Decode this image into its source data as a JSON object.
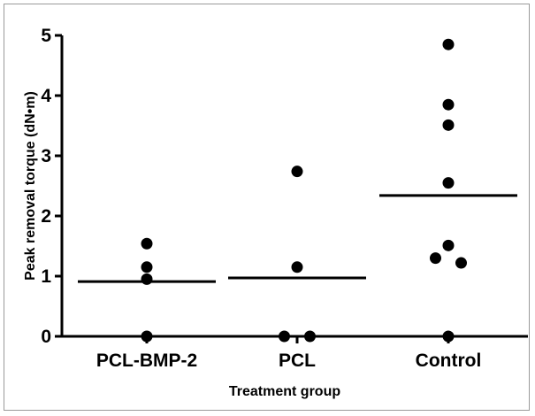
{
  "chart_data": {
    "type": "scatter",
    "subtype": "dot-plot-with-mean",
    "title": "",
    "xlabel": "Treatment group",
    "ylabel": "Peak removal torque (dN•m)",
    "ylim": [
      0,
      5
    ],
    "yticks": [
      "0",
      "1",
      "2",
      "3",
      "4",
      "5"
    ],
    "grid": false,
    "categories": [
      "PCL-BMP-2",
      "PCL",
      "Control"
    ],
    "groups": [
      {
        "category": "PCL-BMP-2",
        "points": [
          1.54,
          1.15,
          0.95,
          0.0
        ],
        "mean": 0.91
      },
      {
        "category": "PCL",
        "points": [
          2.74,
          1.15,
          0.0,
          0.0
        ],
        "mean": 0.97
      },
      {
        "category": "Control",
        "points": [
          4.85,
          3.85,
          3.51,
          2.55,
          1.51,
          1.3,
          1.22,
          0.0
        ],
        "mean": 2.34
      }
    ]
  }
}
